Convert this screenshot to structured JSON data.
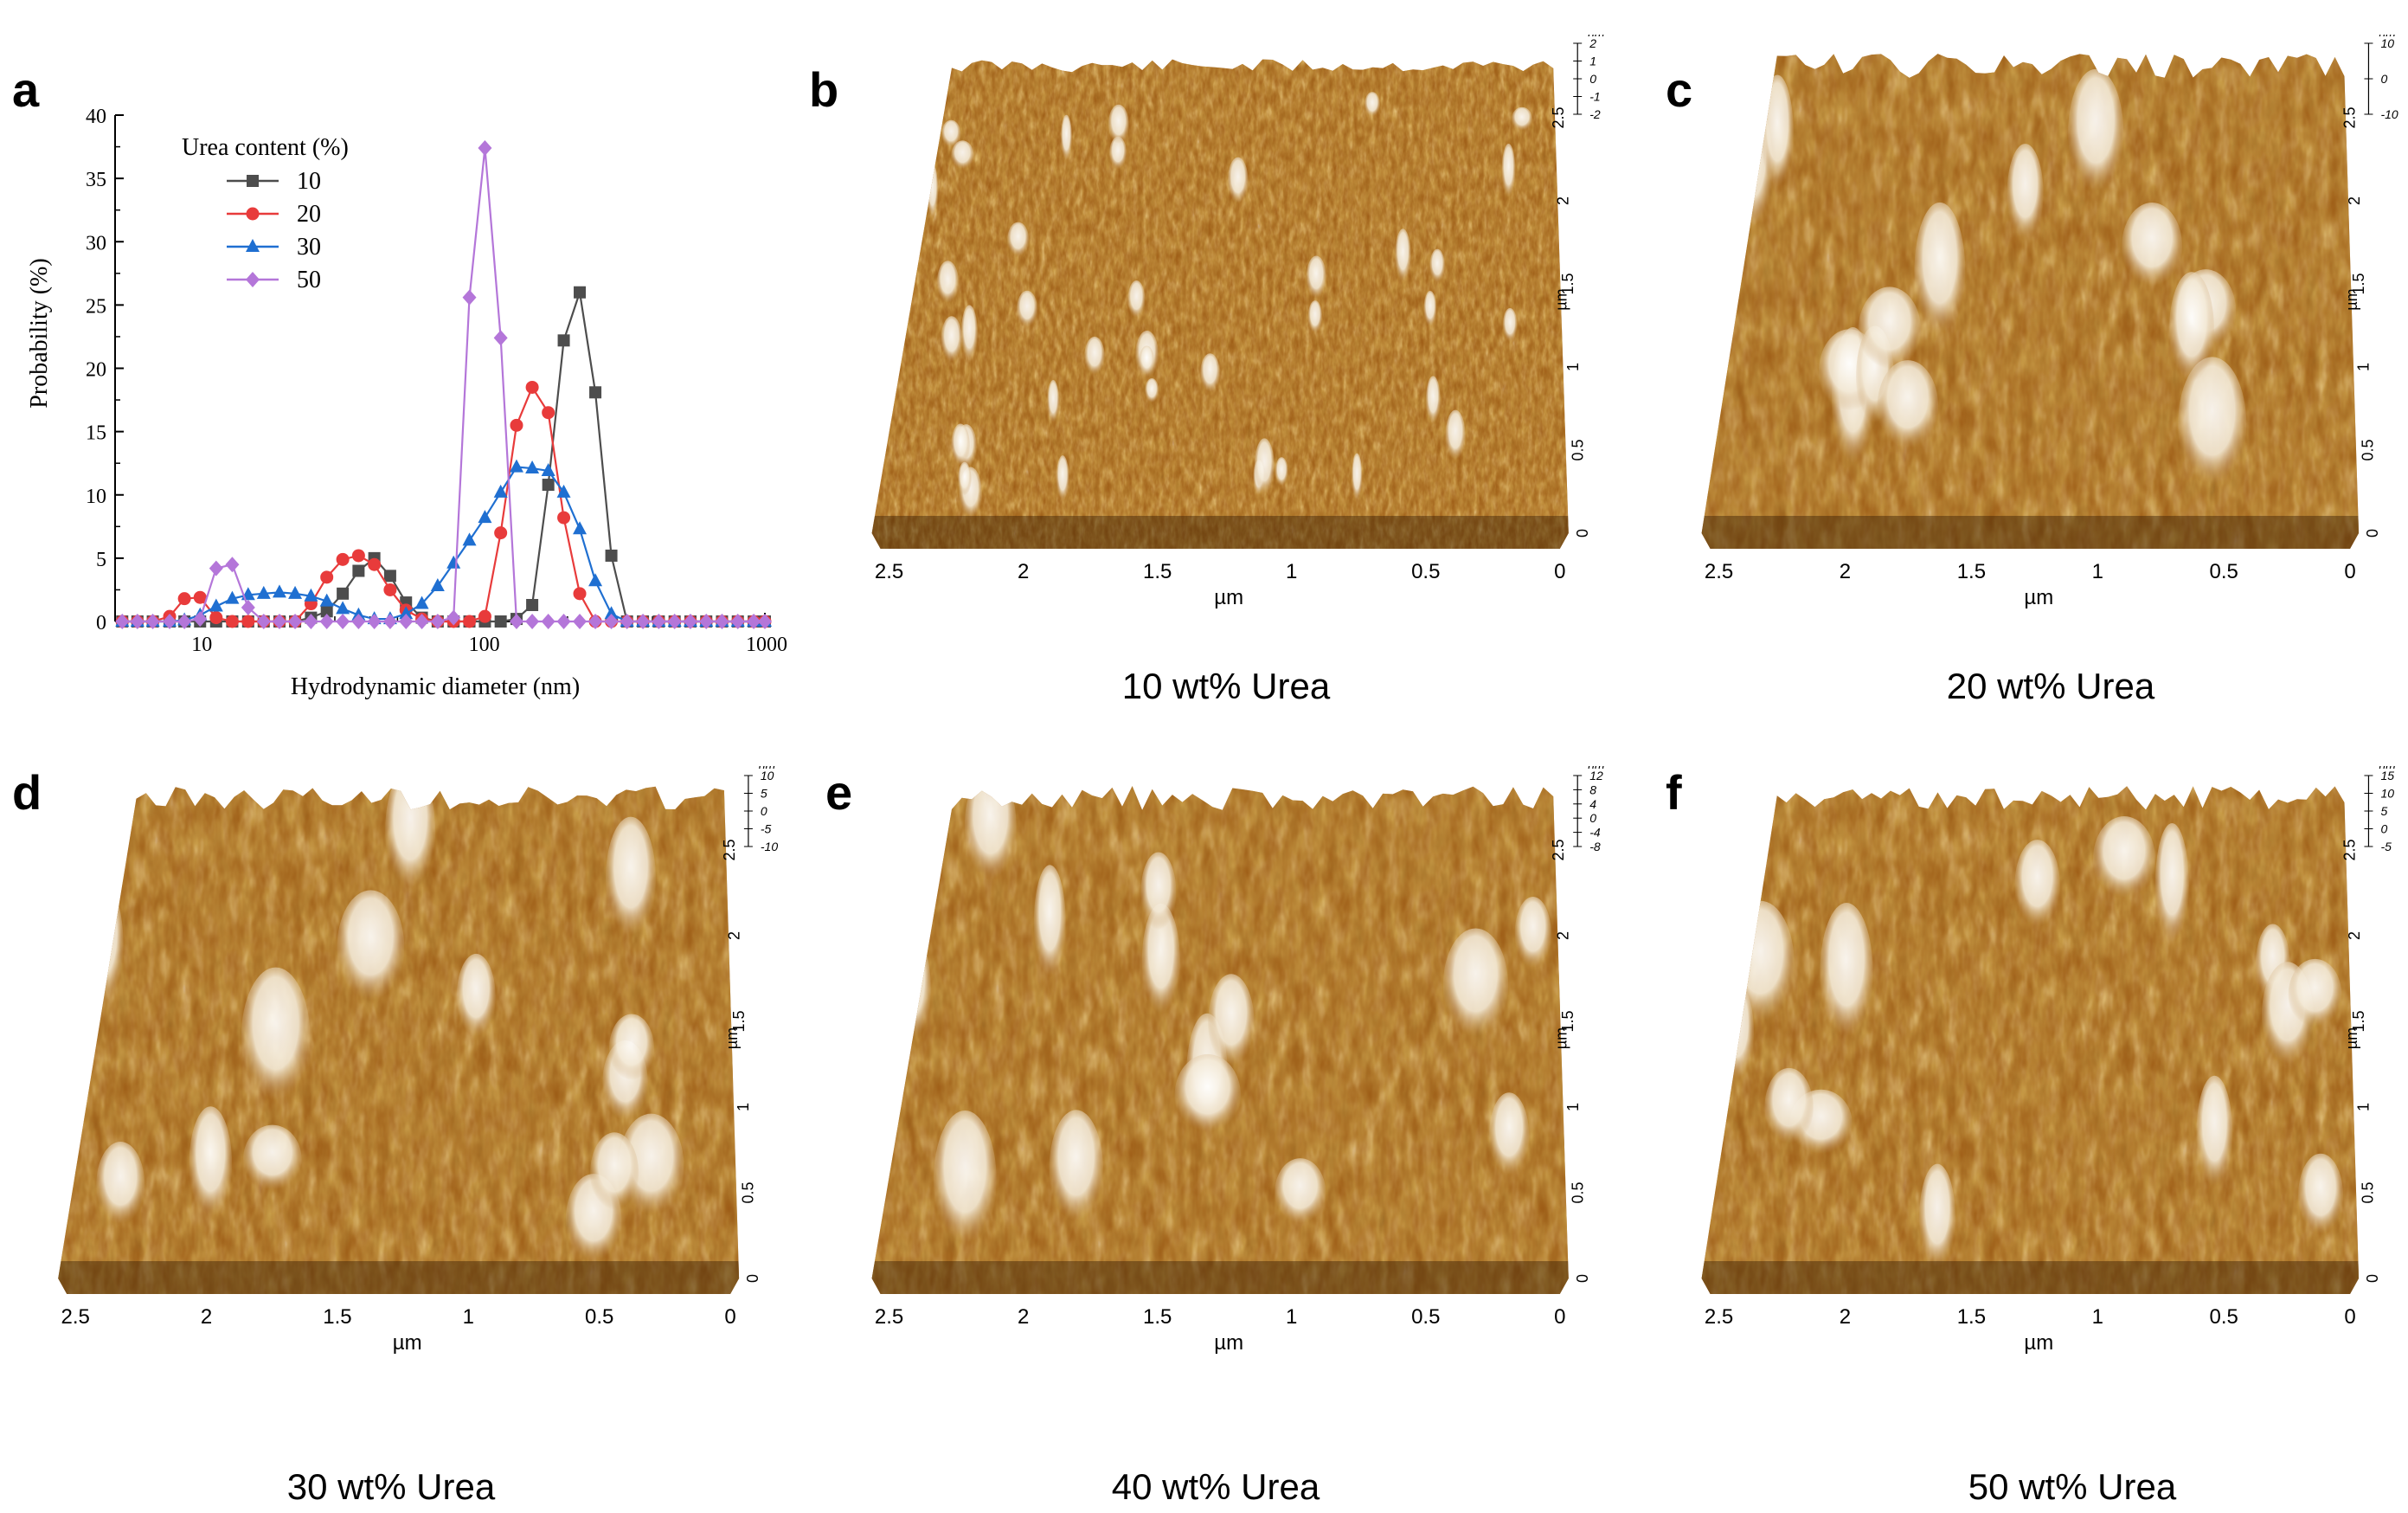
{
  "figure": {
    "panels": {
      "a": {
        "letter": "a"
      },
      "b": {
        "letter": "b",
        "caption": "10 wt% Urea"
      },
      "c": {
        "letter": "c",
        "caption": "20 wt% Urea"
      },
      "d": {
        "letter": "d",
        "caption": "30 wt% Urea"
      },
      "e": {
        "letter": "e",
        "caption": "40 wt% Urea"
      },
      "f": {
        "letter": "f",
        "caption": "50 wt% Urea"
      }
    },
    "afm": {
      "x_unit": "µm",
      "y_unit": "µm",
      "z_unit": "nm",
      "x_ticks": [
        "2.5",
        "2",
        "1.5",
        "1",
        "0.5",
        "0"
      ],
      "y_ticks": [
        "0",
        "0.5",
        "1",
        "1.5",
        "2",
        "2.5"
      ],
      "z_ticks": {
        "b": [
          "-2",
          "-1",
          "0",
          "1",
          "2"
        ],
        "c": [
          "-10",
          "0",
          "10"
        ],
        "d": [
          "-10",
          "-5",
          "0",
          "5",
          "10"
        ],
        "e": [
          "-8",
          "-4",
          "0",
          "4",
          "8",
          "12"
        ],
        "f": [
          "-5",
          "0",
          "5",
          "10",
          "15"
        ]
      },
      "colors": {
        "low": "#3a1e05",
        "mid": "#9c5a14",
        "high": "#f6efe2"
      }
    }
  },
  "chart_data": {
    "type": "line",
    "title": "",
    "xlabel": "Hydrodynamic diameter (nm)",
    "ylabel": "Probability (%)",
    "xscale": "log",
    "xlim": [
      5,
      1000
    ],
    "ylim": [
      0,
      40
    ],
    "x_ticks": [
      "10",
      "100",
      "1000"
    ],
    "y_ticks": [
      "0",
      "5",
      "10",
      "15",
      "20",
      "25",
      "30",
      "35",
      "40"
    ],
    "legend_title": "Urea content (%)",
    "legend_position": "top-left",
    "series": [
      {
        "name": "10",
        "color": "#4d4d4d",
        "marker": "square",
        "x": [
          5.3,
          6.0,
          6.8,
          7.8,
          8.8,
          10.0,
          11.4,
          13.0,
          14.8,
          16.8,
          19.1,
          21.7,
          24.7,
          28.1,
          32.0,
          36.4,
          41.4,
          47.1,
          53.6,
          61.0,
          69.4,
          79.0,
          89.9,
          102,
          116,
          132,
          150,
          171,
          194,
          221,
          251,
          286,
          325,
          370,
          421,
          479,
          545,
          620,
          705,
          802,
          913,
          1000
        ],
        "y": [
          0,
          0,
          0,
          0,
          0,
          0,
          0,
          0,
          0,
          0,
          0,
          0,
          0.3,
          0.8,
          2.2,
          4.0,
          5.0,
          3.6,
          1.5,
          0.3,
          0,
          0,
          0,
          0,
          0,
          0.2,
          1.3,
          10.8,
          22.2,
          26.0,
          18.1,
          5.2,
          0,
          0,
          0,
          0,
          0,
          0,
          0,
          0,
          0,
          0
        ]
      },
      {
        "name": "20",
        "color": "#e83b3b",
        "marker": "circle",
        "x": [
          5.3,
          6.0,
          6.8,
          7.8,
          8.8,
          10.0,
          11.4,
          13.0,
          14.8,
          16.8,
          19.1,
          21.7,
          24.7,
          28.1,
          32.0,
          36.4,
          41.4,
          47.1,
          53.6,
          61.0,
          69.4,
          79.0,
          89.9,
          102,
          116,
          132,
          150,
          171,
          194,
          221,
          251,
          286,
          325,
          370,
          421,
          479,
          545,
          620,
          705,
          802,
          913,
          1000
        ],
        "y": [
          0,
          0,
          0,
          0.4,
          1.8,
          1.9,
          0.3,
          0,
          0,
          0,
          0,
          0,
          1.4,
          3.5,
          4.9,
          5.2,
          4.5,
          2.5,
          0.9,
          0.2,
          0,
          0,
          0,
          0.4,
          7.0,
          15.5,
          18.5,
          16.5,
          8.2,
          2.2,
          0,
          0,
          0,
          0,
          0,
          0,
          0,
          0,
          0,
          0,
          0,
          0
        ]
      },
      {
        "name": "30",
        "color": "#1f6fd1",
        "marker": "triangle",
        "x": [
          5.3,
          6.0,
          6.8,
          7.8,
          8.8,
          10.0,
          11.4,
          13.0,
          14.8,
          16.8,
          19.1,
          21.7,
          24.7,
          28.1,
          32.0,
          36.4,
          41.4,
          47.1,
          53.6,
          61.0,
          69.4,
          79.0,
          89.9,
          102,
          116,
          132,
          150,
          171,
          194,
          221,
          251,
          286,
          325,
          370,
          421,
          479,
          545,
          620,
          705,
          802,
          913,
          1000
        ],
        "y": [
          0,
          0,
          0,
          0,
          0.1,
          0.5,
          1.2,
          1.8,
          2.1,
          2.2,
          2.3,
          2.2,
          2.0,
          1.6,
          1.0,
          0.5,
          0.2,
          0.2,
          0.6,
          1.4,
          2.8,
          4.6,
          6.4,
          8.2,
          10.2,
          12.2,
          12.1,
          11.9,
          10.2,
          7.3,
          3.2,
          0.6,
          0,
          0,
          0,
          0,
          0,
          0,
          0,
          0,
          0,
          0
        ]
      },
      {
        "name": "50",
        "color": "#b476d9",
        "marker": "diamond",
        "x": [
          5.3,
          6.0,
          6.8,
          7.8,
          8.8,
          10.0,
          11.4,
          13.0,
          14.8,
          16.8,
          19.1,
          21.7,
          24.7,
          28.1,
          32.0,
          36.4,
          41.4,
          47.1,
          53.6,
          61.0,
          69.4,
          79.0,
          89.9,
          102,
          116,
          132,
          150,
          171,
          194,
          221,
          251,
          286,
          325,
          370,
          421,
          479,
          545,
          620,
          705,
          802,
          913,
          1000
        ],
        "y": [
          0,
          0,
          0,
          0,
          0,
          0.2,
          4.2,
          4.5,
          1.1,
          0,
          0,
          0,
          0,
          0,
          0,
          0,
          0,
          0,
          0,
          0,
          0,
          0.3,
          25.6,
          37.4,
          22.4,
          0,
          0,
          0,
          0,
          0,
          0,
          0,
          0,
          0,
          0,
          0,
          0,
          0,
          0,
          0,
          0,
          0
        ]
      }
    ]
  }
}
